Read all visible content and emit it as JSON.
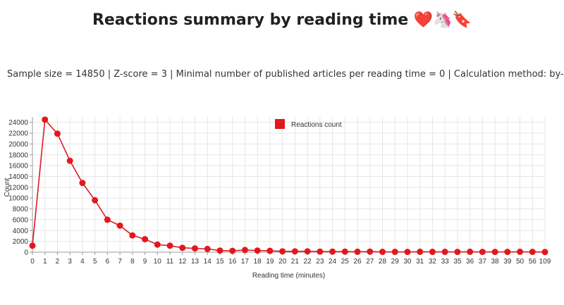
{
  "page": {
    "title": "Reactions summary by reading time ❤️🦄🔖",
    "subtitle": "Sample size = 14850 | Z-score = 3 | Minimal number of published articles per reading time = 0 | Calculation method: by-sum"
  },
  "colors": {
    "series": "#e0191f",
    "grid": "#e6e6e6",
    "axis": "#999999"
  },
  "chart_data": {
    "type": "line",
    "title": "Reactions summary by reading time ❤️🦄🔖",
    "xlabel": "Reading time (minutes)",
    "ylabel": "Count",
    "categories": [
      "0",
      "1",
      "2",
      "3",
      "4",
      "5",
      "6",
      "7",
      "8",
      "9",
      "10",
      "11",
      "12",
      "13",
      "14",
      "15",
      "16",
      "17",
      "18",
      "19",
      "20",
      "21",
      "22",
      "23",
      "24",
      "25",
      "26",
      "27",
      "28",
      "29",
      "30",
      "31",
      "32",
      "33",
      "35",
      "36",
      "37",
      "38",
      "39",
      "50",
      "56",
      "109"
    ],
    "series": [
      {
        "name": "Reactions count",
        "values": [
          1200,
          24500,
          21900,
          16900,
          12800,
          9600,
          6000,
          4900,
          3100,
          2400,
          1400,
          1200,
          800,
          700,
          600,
          300,
          250,
          400,
          300,
          250,
          150,
          150,
          150,
          100,
          100,
          100,
          80,
          100,
          60,
          60,
          50,
          80,
          60,
          60,
          50,
          80,
          50,
          50,
          50,
          80,
          50,
          30
        ]
      }
    ],
    "ylim": [
      0,
      25000
    ],
    "yticks": [
      0,
      2000,
      4000,
      6000,
      8000,
      10000,
      12000,
      14000,
      16000,
      18000,
      20000,
      22000,
      24000
    ],
    "grid": true,
    "legend": "top-center"
  }
}
